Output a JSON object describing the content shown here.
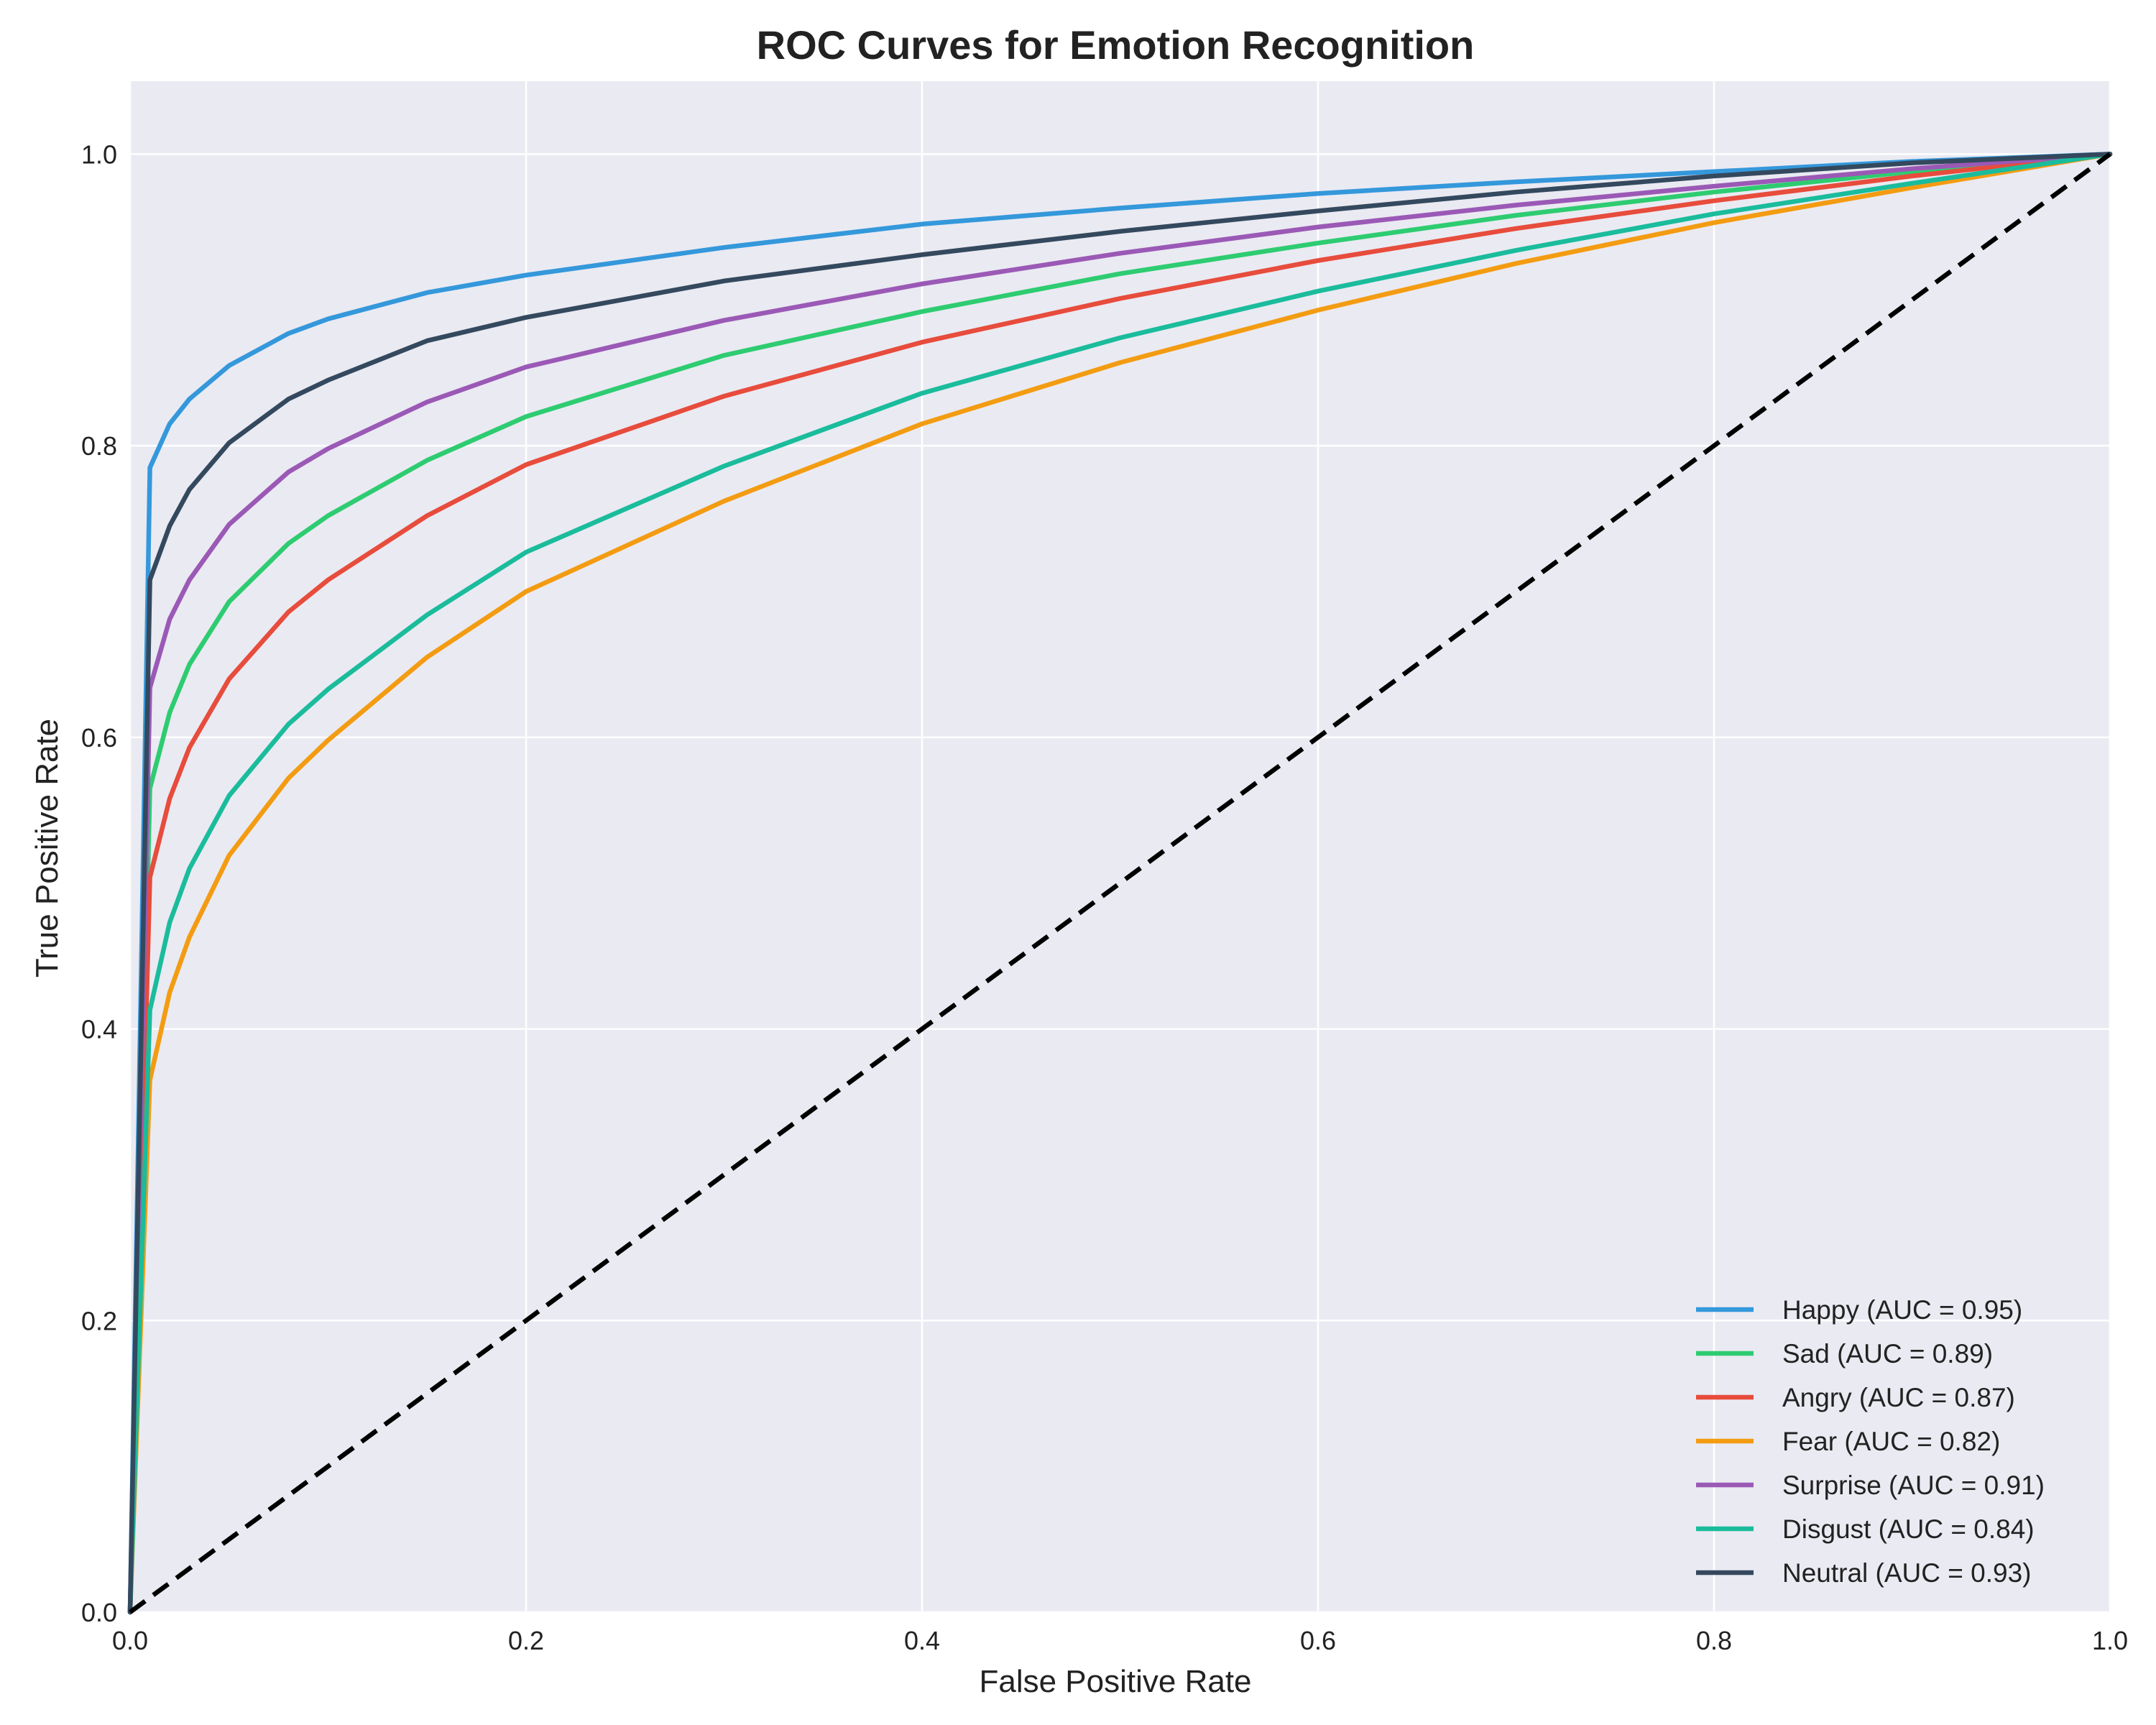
{
  "chart_data": {
    "type": "line",
    "title": "ROC Curves for Emotion Recognition",
    "xlabel": "False Positive Rate",
    "ylabel": "True Positive Rate",
    "xlim": [
      0.0,
      1.0
    ],
    "ylim": [
      0.0,
      1.05
    ],
    "xticks": [
      "0.0",
      "0.2",
      "0.4",
      "0.6",
      "0.8",
      "1.0"
    ],
    "yticks": [
      "0.0",
      "0.2",
      "0.4",
      "0.6",
      "0.8",
      "1.0"
    ],
    "xtick_values": [
      0,
      0.2,
      0.4,
      0.6,
      0.8,
      1.0
    ],
    "ytick_values": [
      0,
      0.2,
      0.4,
      0.6,
      0.8,
      1.0
    ],
    "grid": true,
    "background_color": "#eaeaf2",
    "grid_color": "#ffffff",
    "legend_position": "lower-right",
    "x": [
      0,
      0.01,
      0.02,
      0.03,
      0.05,
      0.08,
      0.1,
      0.15,
      0.2,
      0.3,
      0.4,
      0.5,
      0.6,
      0.7,
      0.8,
      0.9,
      1.0
    ],
    "series": [
      {
        "name": "Happy (AUC = 0.95)",
        "color": "#3498db",
        "y": [
          0,
          0.785,
          0.815,
          0.832,
          0.855,
          0.877,
          0.887,
          0.905,
          0.917,
          0.936,
          0.952,
          0.963,
          0.973,
          0.981,
          0.988,
          0.995,
          1.0
        ]
      },
      {
        "name": "Sad (AUC = 0.89)",
        "color": "#2ecc71",
        "y": [
          0,
          0.565,
          0.617,
          0.65,
          0.693,
          0.733,
          0.752,
          0.79,
          0.82,
          0.862,
          0.892,
          0.918,
          0.939,
          0.958,
          0.974,
          0.988,
          1.0
        ]
      },
      {
        "name": "Angry (AUC = 0.87)",
        "color": "#e74c3c",
        "y": [
          0,
          0.504,
          0.558,
          0.593,
          0.64,
          0.686,
          0.708,
          0.752,
          0.787,
          0.834,
          0.871,
          0.901,
          0.927,
          0.949,
          0.968,
          0.985,
          1.0
        ]
      },
      {
        "name": "Fear (AUC = 0.82)",
        "color": "#f39c12",
        "y": [
          0,
          0.365,
          0.425,
          0.463,
          0.519,
          0.572,
          0.598,
          0.655,
          0.7,
          0.762,
          0.815,
          0.857,
          0.893,
          0.925,
          0.953,
          0.977,
          1.0
        ]
      },
      {
        "name": "Surprise (AUC = 0.91)",
        "color": "#9b59b6",
        "y": [
          0,
          0.634,
          0.681,
          0.708,
          0.746,
          0.782,
          0.798,
          0.83,
          0.854,
          0.886,
          0.911,
          0.932,
          0.95,
          0.965,
          0.978,
          0.99,
          1.0
        ]
      },
      {
        "name": "Disgust (AUC = 0.84)",
        "color": "#1abc9c",
        "y": [
          0,
          0.413,
          0.473,
          0.51,
          0.56,
          0.609,
          0.633,
          0.684,
          0.727,
          0.786,
          0.836,
          0.874,
          0.906,
          0.934,
          0.959,
          0.98,
          1.0
        ]
      },
      {
        "name": "Neutral (AUC = 0.93)",
        "color": "#34495e",
        "y": [
          0,
          0.708,
          0.745,
          0.77,
          0.802,
          0.832,
          0.845,
          0.872,
          0.888,
          0.913,
          0.931,
          0.947,
          0.961,
          0.974,
          0.985,
          0.994,
          1.0
        ]
      }
    ],
    "reference_line": {
      "x": [
        0,
        1
      ],
      "y": [
        0,
        1
      ],
      "color": "#000000",
      "style": "dashed"
    }
  }
}
